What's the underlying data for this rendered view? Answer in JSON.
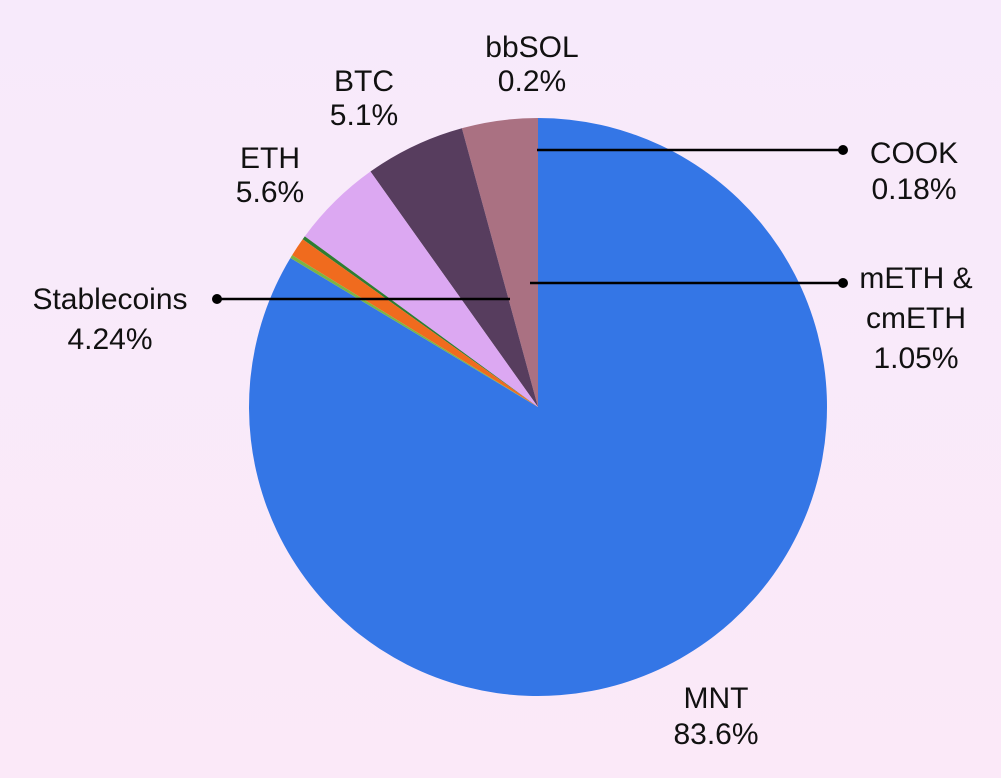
{
  "chart_data": {
    "type": "pie",
    "slices": [
      {
        "label": "MNT",
        "value_label": "83.6%",
        "value": 83.6,
        "color": "#3476e6",
        "label_lines": [
          "MNT",
          "83.6%"
        ]
      },
      {
        "label": "Stablecoins",
        "value_label": "4.24%",
        "value": 4.24,
        "color": "#aa7182",
        "label_lines": [
          "Stablecoins",
          "4.24%"
        ]
      },
      {
        "label": "ETH",
        "value_label": "5.6%",
        "value": 5.6,
        "color": "#573d5e",
        "label_lines": [
          "ETH",
          "5.6%"
        ]
      },
      {
        "label": "BTC",
        "value_label": "5.1%",
        "value": 5.1,
        "color": "#dca8f2",
        "label_lines": [
          "BTC",
          "5.1%"
        ]
      },
      {
        "label": "bbSOL",
        "value_label": "0.2%",
        "value": 0.2,
        "color": "#2e7d32",
        "label_lines": [
          "bbSOL",
          "0.2%"
        ]
      },
      {
        "label": "mETH & cmETH",
        "value_label": "1.05%",
        "value": 1.05,
        "color": "#f06b1e",
        "label_lines": [
          "mETH &",
          "cmETH",
          "1.05%"
        ]
      },
      {
        "label": "COOK",
        "value_label": "0.18%",
        "value": 0.18,
        "color": "#7db342",
        "label_lines": [
          "COOK",
          "0.18%"
        ]
      }
    ]
  }
}
